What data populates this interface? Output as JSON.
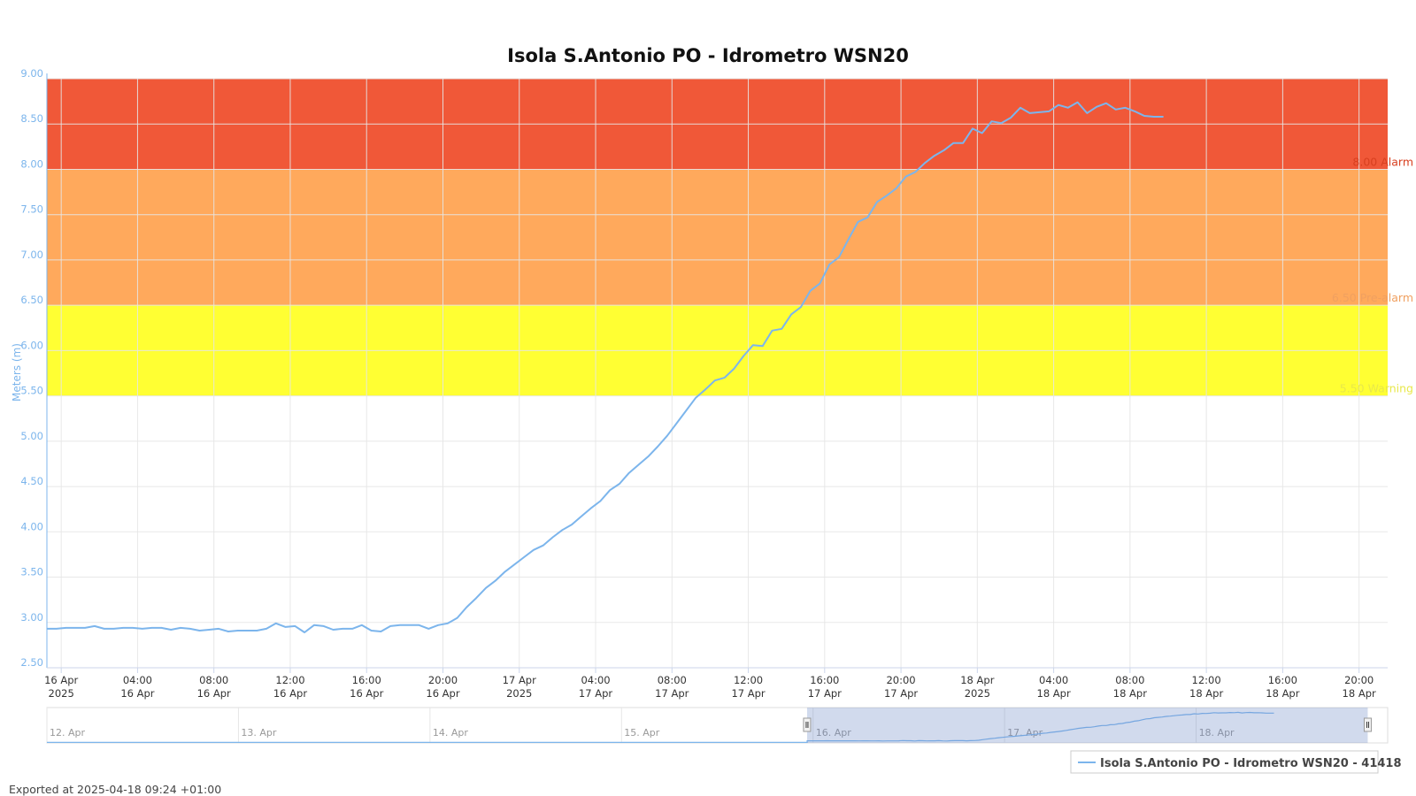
{
  "chart_data": {
    "type": "line",
    "title": "Isola S.Antonio PO - Idrometro WSN20",
    "ylabel": "Meters (m)",
    "ylim": [
      2.5,
      9.0
    ],
    "yticks": [
      "2.50",
      "3.00",
      "3.50",
      "4.00",
      "4.50",
      "5.00",
      "5.50",
      "6.00",
      "6.50",
      "7.00",
      "7.50",
      "8.00",
      "8.50",
      "9.00"
    ],
    "xlim": [
      "2025-04-15T23:15",
      "2025-04-18T21:30"
    ],
    "xticks": [
      {
        "t": "2025-04-16T00:00",
        "line1": "16 Apr",
        "line2": "2025"
      },
      {
        "t": "2025-04-16T04:00",
        "line1": "04:00",
        "line2": "16 Apr"
      },
      {
        "t": "2025-04-16T08:00",
        "line1": "08:00",
        "line2": "16 Apr"
      },
      {
        "t": "2025-04-16T12:00",
        "line1": "12:00",
        "line2": "16 Apr"
      },
      {
        "t": "2025-04-16T16:00",
        "line1": "16:00",
        "line2": "16 Apr"
      },
      {
        "t": "2025-04-16T20:00",
        "line1": "20:00",
        "line2": "16 Apr"
      },
      {
        "t": "2025-04-17T00:00",
        "line1": "17 Apr",
        "line2": "2025"
      },
      {
        "t": "2025-04-17T04:00",
        "line1": "04:00",
        "line2": "17 Apr"
      },
      {
        "t": "2025-04-17T08:00",
        "line1": "08:00",
        "line2": "17 Apr"
      },
      {
        "t": "2025-04-17T12:00",
        "line1": "12:00",
        "line2": "17 Apr"
      },
      {
        "t": "2025-04-17T16:00",
        "line1": "16:00",
        "line2": "17 Apr"
      },
      {
        "t": "2025-04-17T20:00",
        "line1": "20:00",
        "line2": "17 Apr"
      },
      {
        "t": "2025-04-18T00:00",
        "line1": "18 Apr",
        "line2": "2025"
      },
      {
        "t": "2025-04-18T04:00",
        "line1": "04:00",
        "line2": "18 Apr"
      },
      {
        "t": "2025-04-18T08:00",
        "line1": "08:00",
        "line2": "18 Apr"
      },
      {
        "t": "2025-04-18T12:00",
        "line1": "12:00",
        "line2": "18 Apr"
      },
      {
        "t": "2025-04-18T16:00",
        "line1": "16:00",
        "line2": "18 Apr"
      },
      {
        "t": "2025-04-18T20:00",
        "line1": "20:00",
        "line2": "18 Apr"
      }
    ],
    "grid": true,
    "bands": [
      {
        "from": 5.5,
        "to": 6.5,
        "color": "#ffff33",
        "label": "5.50 Warning",
        "label_color": "#e8e84a"
      },
      {
        "from": 6.5,
        "to": 8.0,
        "color": "#ffa95c",
        "label": "6.50 Pre-alarm",
        "label_color": "#f0a060"
      },
      {
        "from": 8.0,
        "to": 9.0,
        "color": "#f05838",
        "label": "8.00 Alarm",
        "label_color": "#d84020"
      }
    ],
    "series": [
      {
        "name": "Isola S.Antonio PO - Idrometro WSN20 - 41418",
        "color": "#7cb5ec",
        "points": [
          [
            "2025-04-15T23:15",
            2.93
          ],
          [
            "2025-04-15T23:45",
            2.93
          ],
          [
            "2025-04-16T00:15",
            2.94
          ],
          [
            "2025-04-16T00:45",
            2.94
          ],
          [
            "2025-04-16T01:15",
            2.94
          ],
          [
            "2025-04-16T01:45",
            2.96
          ],
          [
            "2025-04-16T02:15",
            2.93
          ],
          [
            "2025-04-16T02:45",
            2.93
          ],
          [
            "2025-04-16T03:15",
            2.94
          ],
          [
            "2025-04-16T03:45",
            2.94
          ],
          [
            "2025-04-16T04:15",
            2.93
          ],
          [
            "2025-04-16T04:45",
            2.94
          ],
          [
            "2025-04-16T05:15",
            2.94
          ],
          [
            "2025-04-16T05:45",
            2.92
          ],
          [
            "2025-04-16T06:15",
            2.94
          ],
          [
            "2025-04-16T06:45",
            2.93
          ],
          [
            "2025-04-16T07:15",
            2.91
          ],
          [
            "2025-04-16T07:45",
            2.92
          ],
          [
            "2025-04-16T08:15",
            2.93
          ],
          [
            "2025-04-16T08:45",
            2.9
          ],
          [
            "2025-04-16T09:15",
            2.91
          ],
          [
            "2025-04-16T09:45",
            2.91
          ],
          [
            "2025-04-16T10:15",
            2.91
          ],
          [
            "2025-04-16T10:45",
            2.93
          ],
          [
            "2025-04-16T11:15",
            2.99
          ],
          [
            "2025-04-16T11:45",
            2.95
          ],
          [
            "2025-04-16T12:15",
            2.96
          ],
          [
            "2025-04-16T12:45",
            2.89
          ],
          [
            "2025-04-16T13:15",
            2.97
          ],
          [
            "2025-04-16T13:45",
            2.96
          ],
          [
            "2025-04-16T14:15",
            2.92
          ],
          [
            "2025-04-16T14:45",
            2.93
          ],
          [
            "2025-04-16T15:15",
            2.93
          ],
          [
            "2025-04-16T15:45",
            2.97
          ],
          [
            "2025-04-16T16:15",
            2.91
          ],
          [
            "2025-04-16T16:45",
            2.9
          ],
          [
            "2025-04-16T17:15",
            2.96
          ],
          [
            "2025-04-16T17:45",
            2.97
          ],
          [
            "2025-04-16T18:15",
            2.97
          ],
          [
            "2025-04-16T18:45",
            2.97
          ],
          [
            "2025-04-16T19:15",
            2.93
          ],
          [
            "2025-04-16T19:45",
            2.97
          ],
          [
            "2025-04-16T20:15",
            2.99
          ],
          [
            "2025-04-16T20:45",
            3.05
          ],
          [
            "2025-04-16T21:15",
            3.17
          ],
          [
            "2025-04-16T21:45",
            3.27
          ],
          [
            "2025-04-16T22:15",
            3.38
          ],
          [
            "2025-04-16T22:45",
            3.46
          ],
          [
            "2025-04-16T23:15",
            3.56
          ],
          [
            "2025-04-16T23:45",
            3.64
          ],
          [
            "2025-04-17T00:15",
            3.72
          ],
          [
            "2025-04-17T00:45",
            3.8
          ],
          [
            "2025-04-17T01:15",
            3.85
          ],
          [
            "2025-04-17T01:45",
            3.94
          ],
          [
            "2025-04-17T02:15",
            4.02
          ],
          [
            "2025-04-17T02:45",
            4.08
          ],
          [
            "2025-04-17T03:15",
            4.17
          ],
          [
            "2025-04-17T03:45",
            4.26
          ],
          [
            "2025-04-17T04:15",
            4.34
          ],
          [
            "2025-04-17T04:45",
            4.46
          ],
          [
            "2025-04-17T05:15",
            4.53
          ],
          [
            "2025-04-17T05:45",
            4.65
          ],
          [
            "2025-04-17T06:15",
            4.74
          ],
          [
            "2025-04-17T06:45",
            4.83
          ],
          [
            "2025-04-17T07:15",
            4.94
          ],
          [
            "2025-04-17T07:45",
            5.06
          ],
          [
            "2025-04-17T08:15",
            5.2
          ],
          [
            "2025-04-17T08:45",
            5.34
          ],
          [
            "2025-04-17T09:15",
            5.48
          ],
          [
            "2025-04-17T09:45",
            5.57
          ],
          [
            "2025-04-17T10:15",
            5.67
          ],
          [
            "2025-04-17T10:45",
            5.7
          ],
          [
            "2025-04-17T11:15",
            5.8
          ],
          [
            "2025-04-17T11:45",
            5.94
          ],
          [
            "2025-04-17T12:15",
            6.06
          ],
          [
            "2025-04-17T12:45",
            6.05
          ],
          [
            "2025-04-17T13:15",
            6.22
          ],
          [
            "2025-04-17T13:45",
            6.24
          ],
          [
            "2025-04-17T14:15",
            6.4
          ],
          [
            "2025-04-17T14:45",
            6.48
          ],
          [
            "2025-04-17T15:15",
            6.66
          ],
          [
            "2025-04-17T15:45",
            6.74
          ],
          [
            "2025-04-17T16:15",
            6.95
          ],
          [
            "2025-04-17T16:45",
            7.03
          ],
          [
            "2025-04-17T17:15",
            7.23
          ],
          [
            "2025-04-17T17:45",
            7.42
          ],
          [
            "2025-04-17T18:15",
            7.47
          ],
          [
            "2025-04-17T18:45",
            7.64
          ],
          [
            "2025-04-17T19:15",
            7.71
          ],
          [
            "2025-04-17T19:45",
            7.79
          ],
          [
            "2025-04-17T20:15",
            7.92
          ],
          [
            "2025-04-17T20:45",
            7.97
          ],
          [
            "2025-04-17T21:15",
            8.07
          ],
          [
            "2025-04-17T21:45",
            8.15
          ],
          [
            "2025-04-17T22:15",
            8.21
          ],
          [
            "2025-04-17T22:45",
            8.29
          ],
          [
            "2025-04-17T23:15",
            8.29
          ],
          [
            "2025-04-17T23:45",
            8.45
          ],
          [
            "2025-04-18T00:15",
            8.4
          ],
          [
            "2025-04-18T00:45",
            8.53
          ],
          [
            "2025-04-18T01:15",
            8.51
          ],
          [
            "2025-04-18T01:45",
            8.57
          ],
          [
            "2025-04-18T02:15",
            8.68
          ],
          [
            "2025-04-18T02:45",
            8.62
          ],
          [
            "2025-04-18T03:15",
            8.63
          ],
          [
            "2025-04-18T03:45",
            8.64
          ],
          [
            "2025-04-18T04:15",
            8.71
          ],
          [
            "2025-04-18T04:45",
            8.68
          ],
          [
            "2025-04-18T05:15",
            8.74
          ],
          [
            "2025-04-18T05:45",
            8.62
          ],
          [
            "2025-04-18T06:15",
            8.69
          ],
          [
            "2025-04-18T06:45",
            8.73
          ],
          [
            "2025-04-18T07:15",
            8.66
          ],
          [
            "2025-04-18T07:45",
            8.68
          ],
          [
            "2025-04-18T08:15",
            8.64
          ],
          [
            "2025-04-18T08:45",
            8.59
          ],
          [
            "2025-04-18T09:15",
            8.58
          ],
          [
            "2025-04-18T09:45",
            8.58
          ]
        ]
      }
    ],
    "legend": {
      "position": "bottom-right",
      "label": "Isola S.Antonio PO - Idrometro WSN20 - 41418"
    },
    "navigator": {
      "labels": [
        "12. Apr",
        "13. Apr",
        "14. Apr",
        "15. Apr",
        "16. Apr",
        "17. Apr",
        "18. Apr"
      ],
      "label_dates": [
        "2025-04-12T00:00",
        "2025-04-13T00:00",
        "2025-04-14T00:00",
        "2025-04-15T00:00",
        "2025-04-16T00:00",
        "2025-04-17T00:00",
        "2025-04-18T00:00"
      ],
      "xlim": [
        "2025-04-12T00:00",
        "2025-04-19T00:00"
      ],
      "selected": [
        "2025-04-15T23:15",
        "2025-04-18T21:30"
      ]
    }
  },
  "footer": {
    "exported_text": "Exported at 2025-04-18 09:24 +01:00"
  }
}
